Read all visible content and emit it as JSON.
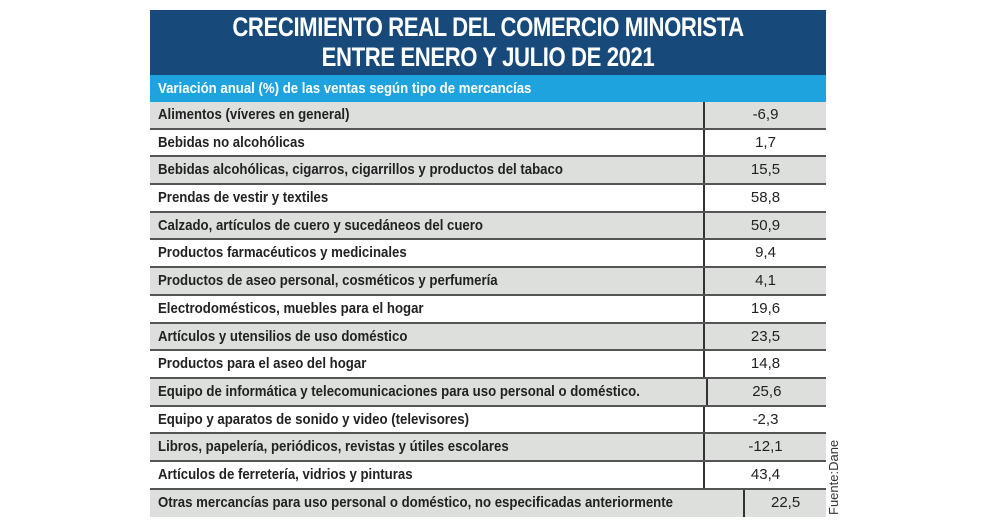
{
  "chart_data": {
    "type": "table",
    "title": "CRECIMIENTO REAL DEL COMERCIO MINORISTA ENTRE ENERO Y JULIO DE 2021",
    "title_lines": [
      "CRECIMIENTO REAL DEL COMERCIO MINORISTA",
      "ENTRE ENERO Y JULIO DE 2021"
    ],
    "subtitle": "Variación anual (%) de las ventas según tipo de mercancías",
    "rows": [
      {
        "label": "Alimentos (víveres en general)",
        "value": "-6,9"
      },
      {
        "label": "Bebidas no alcohólicas",
        "value": "1,7"
      },
      {
        "label": "Bebidas alcohólicas, cigarros, cigarrillos y productos del tabaco",
        "value": "15,5"
      },
      {
        "label": "Prendas de vestir y textiles",
        "value": "58,8"
      },
      {
        "label": "Calzado, artículos de cuero y sucedáneos del cuero",
        "value": "50,9"
      },
      {
        "label": "Productos farmacéuticos y medicinales",
        "value": "9,4"
      },
      {
        "label": "Productos de aseo personal, cosméticos y perfumería",
        "value": "4,1"
      },
      {
        "label": "Electrodomésticos, muebles para el hogar",
        "value": "19,6"
      },
      {
        "label": "Artículos y utensilios de uso doméstico",
        "value": "23,5"
      },
      {
        "label": "Productos para el aseo del hogar",
        "value": "14,8"
      },
      {
        "label": "Equipo de informática y telecomunicaciones para uso personal o doméstico.",
        "value": "25,6"
      },
      {
        "label": "Equipo y aparatos de sonido y video (televisores)",
        "value": "-2,3"
      },
      {
        "label": "Libros, papelería, periódicos, revistas y útiles escolares",
        "value": "-12,1"
      },
      {
        "label": "Artículos de ferretería, vidrios y pinturas",
        "value": "43,4"
      },
      {
        "label": "Otras mercancías para uso personal o doméstico, no especificadas anteriormente",
        "value": "22,5"
      }
    ],
    "source": "Fuente:Dane",
    "colors": {
      "title_bg": "#174a7a",
      "subtitle_bg": "#1fa3df",
      "row_alt": "#dcdfdc"
    }
  }
}
